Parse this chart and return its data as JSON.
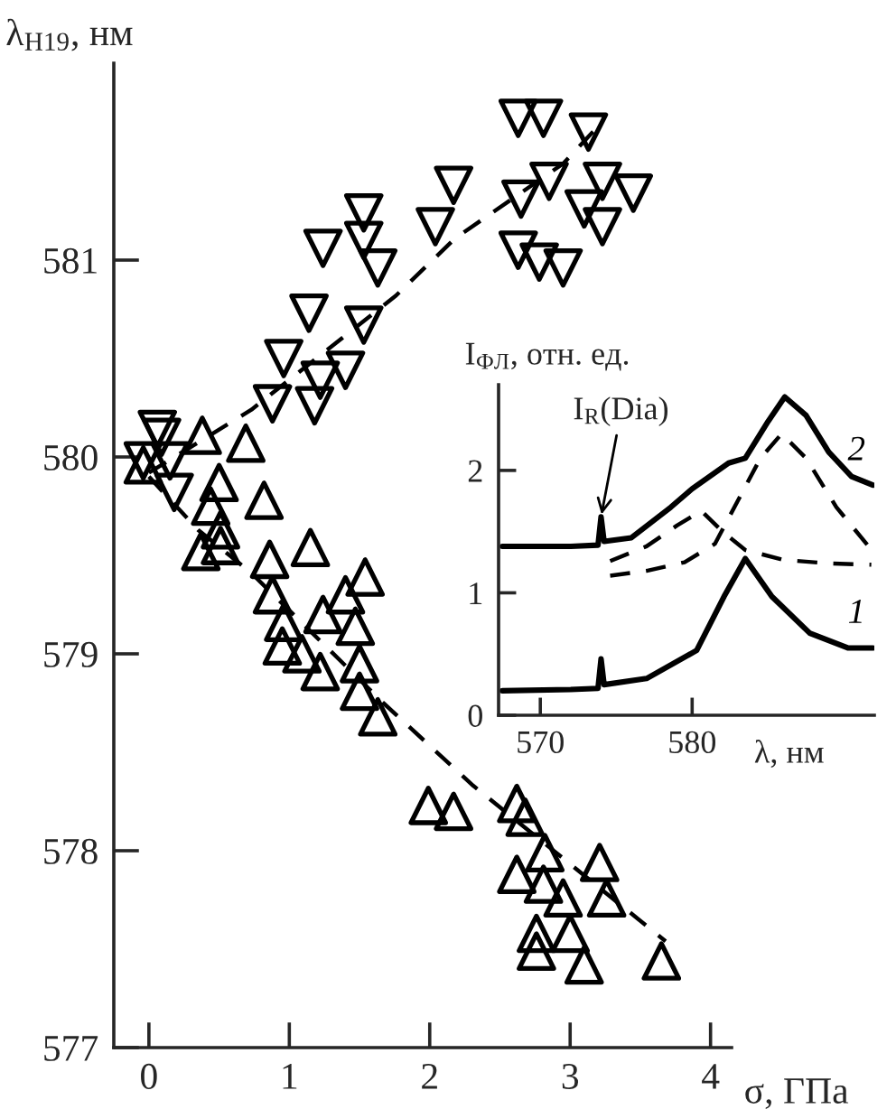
{
  "chart_data": [
    {
      "type": "scatter",
      "xlabel": "σ, ГПа",
      "ylabel": "λ$_{H19}$, нм",
      "xlim": [
        -0.25,
        4.15
      ],
      "ylim": [
        577,
        582.0
      ],
      "xticks": [
        0,
        1,
        2,
        3,
        4
      ],
      "yticks": [
        577,
        578,
        579,
        580,
        581
      ],
      "series": [
        {
          "type": "scatter",
          "marker": "triangle_down",
          "color": "#000000",
          "x": [
            2.63,
            2.81,
            3.13,
            2.17,
            3.23,
            3.45,
            2.85,
            2.65,
            3.1,
            3.23,
            2.04,
            1.53,
            1.53,
            1.24,
            1.63,
            2.63,
            2.78,
            2.95,
            1.14,
            1.53,
            0.96,
            1.22,
            1.4,
            0.88,
            1.18,
            0.06,
            0.09,
            0.15,
            0.18,
            -0.04
          ],
          "values": [
            581.72,
            581.72,
            581.65,
            581.38,
            581.4,
            581.34,
            581.4,
            581.31,
            581.26,
            581.17,
            581.17,
            581.24,
            581.1,
            581.06,
            580.96,
            581.05,
            580.99,
            580.96,
            580.73,
            580.67,
            580.5,
            580.39,
            580.44,
            580.27,
            580.26,
            580.14,
            580.1,
            579.98,
            579.82,
            579.98
          ]
        },
        {
          "type": "scatter",
          "marker": "triangle",
          "color": "#000000",
          "x": [
            0.38,
            0.69,
            -0.04,
            0.5,
            0.82,
            0.44,
            0.51,
            0.37,
            0.51,
            1.15,
            0.86,
            0.88,
            0.96,
            0.95,
            1.24,
            1.4,
            1.54,
            1.47,
            1.09,
            1.22,
            1.5,
            1.5,
            1.63,
            1.99,
            2.17,
            2.62,
            2.68,
            2.82,
            2.62,
            2.81,
            2.95,
            2.76,
            2.76,
            3.0,
            3.1,
            3.21,
            3.26,
            3.65
          ],
          "values": [
            580.11,
            580.07,
            579.96,
            579.87,
            579.78,
            579.75,
            579.63,
            579.52,
            579.55,
            579.54,
            579.48,
            579.3,
            579.16,
            579.04,
            579.2,
            579.3,
            579.39,
            579.14,
            579.0,
            578.91,
            578.95,
            578.81,
            578.68,
            578.23,
            578.2,
            578.24,
            578.17,
            577.99,
            577.88,
            577.83,
            577.76,
            577.58,
            577.49,
            577.58,
            577.42,
            577.94,
            577.76,
            577.44
          ]
        },
        {
          "type": "line",
          "line_style": "dashed",
          "color": "#000000",
          "x": [
            0,
            0.73,
            1.76,
            2.18,
            2.95,
            3.2
          ],
          "values": [
            579.92,
            580.24,
            580.82,
            581.11,
            581.49,
            581.68
          ]
        },
        {
          "type": "line",
          "line_style": "dashed",
          "color": "#000000",
          "x": [
            0,
            0.35,
            0.73,
            1.67,
            2.31,
            3.68
          ],
          "values": [
            579.9,
            579.63,
            579.41,
            578.75,
            578.33,
            577.54
          ]
        }
      ]
    },
    {
      "type": "line",
      "xlabel": "λ, нм",
      "ylabel": "I$_{ФЛ}$, отн. ед.",
      "xlim": [
        567.25,
        592
      ],
      "ylim": [
        0,
        2.7
      ],
      "xticks": [
        570,
        580
      ],
      "yticks": [
        0,
        1,
        2
      ],
      "annotations": [
        {
          "text": "I$_{R}$(Dia)",
          "x": 574,
          "y": 1.62
        }
      ],
      "series": [
        {
          "name": "1",
          "line_style": "solid",
          "color": "#000000",
          "x": [
            567.5,
            572,
            573.8,
            574,
            574.2,
            577,
            580.3,
            582.1,
            583.5,
            585.25,
            587.75,
            590.25,
            591.9
          ],
          "values": [
            0.2,
            0.21,
            0.22,
            0.46,
            0.25,
            0.3,
            0.53,
            0.97,
            1.28,
            0.97,
            0.67,
            0.55,
            0.55
          ]
        },
        {
          "name": "2",
          "line_style": "solid",
          "color": "#000000",
          "x": [
            567.5,
            572,
            573.8,
            574,
            574.2,
            576,
            578.6,
            580,
            582.4,
            583.5,
            585,
            586.1,
            587.5,
            589,
            590.5,
            591.9
          ],
          "values": [
            1.38,
            1.38,
            1.39,
            1.62,
            1.42,
            1.45,
            1.7,
            1.85,
            2.06,
            2.1,
            2.4,
            2.6,
            2.45,
            2.15,
            1.95,
            1.88
          ]
        },
        {
          "line_style": "dashed",
          "color": "#000000",
          "x": [
            574.6,
            577,
            579,
            580.6,
            582,
            583.5,
            586,
            589,
            591.8
          ],
          "values": [
            1.26,
            1.38,
            1.55,
            1.67,
            1.5,
            1.35,
            1.27,
            1.24,
            1.23
          ]
        },
        {
          "line_style": "dashed",
          "color": "#000000",
          "x": [
            574.6,
            577,
            579.5,
            581.5,
            583,
            584.5,
            585.9,
            587.5,
            589.5,
            591.75
          ],
          "values": [
            1.14,
            1.18,
            1.25,
            1.4,
            1.75,
            2.1,
            2.3,
            2.1,
            1.7,
            1.36
          ]
        }
      ]
    }
  ]
}
